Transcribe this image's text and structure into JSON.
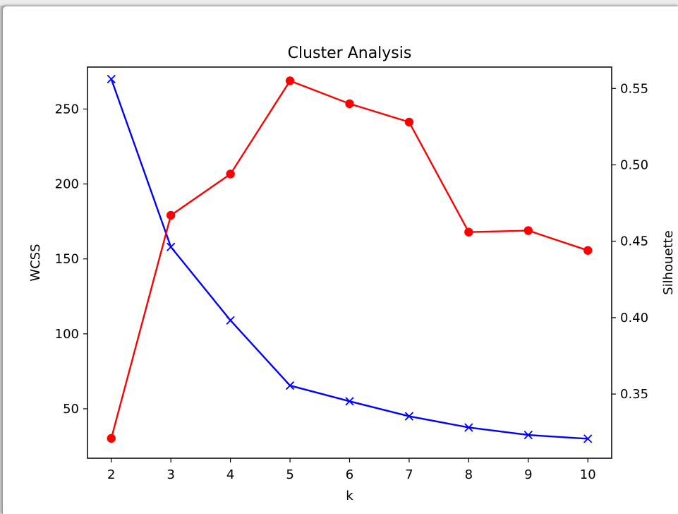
{
  "chart_data": {
    "type": "line",
    "title": "Cluster Analysis",
    "xlabel": "k",
    "ylabel_left": "WCSS",
    "ylabel_right": "Silhouette",
    "x": [
      2,
      3,
      4,
      5,
      6,
      7,
      8,
      9,
      10
    ],
    "xlim": [
      1.6,
      10.4
    ],
    "ylim_left": [
      17,
      278
    ],
    "ylim_right": [
      0.308,
      0.564
    ],
    "yticks_left": [
      50,
      100,
      150,
      200,
      250
    ],
    "yticks_right": [
      "0.35",
      "0.40",
      "0.45",
      "0.50",
      "0.55"
    ],
    "series": [
      {
        "axis": "left",
        "values": [
          270,
          158,
          109,
          65.5,
          55,
          45,
          37.5,
          32.5,
          30
        ],
        "color": "#0000ff",
        "marker": "x"
      },
      {
        "axis": "right",
        "values": [
          0.321,
          0.467,
          0.494,
          0.555,
          0.54,
          0.528,
          0.456,
          0.457,
          0.444
        ],
        "color": "#ff0000",
        "marker": "o"
      }
    ],
    "grid": false
  }
}
